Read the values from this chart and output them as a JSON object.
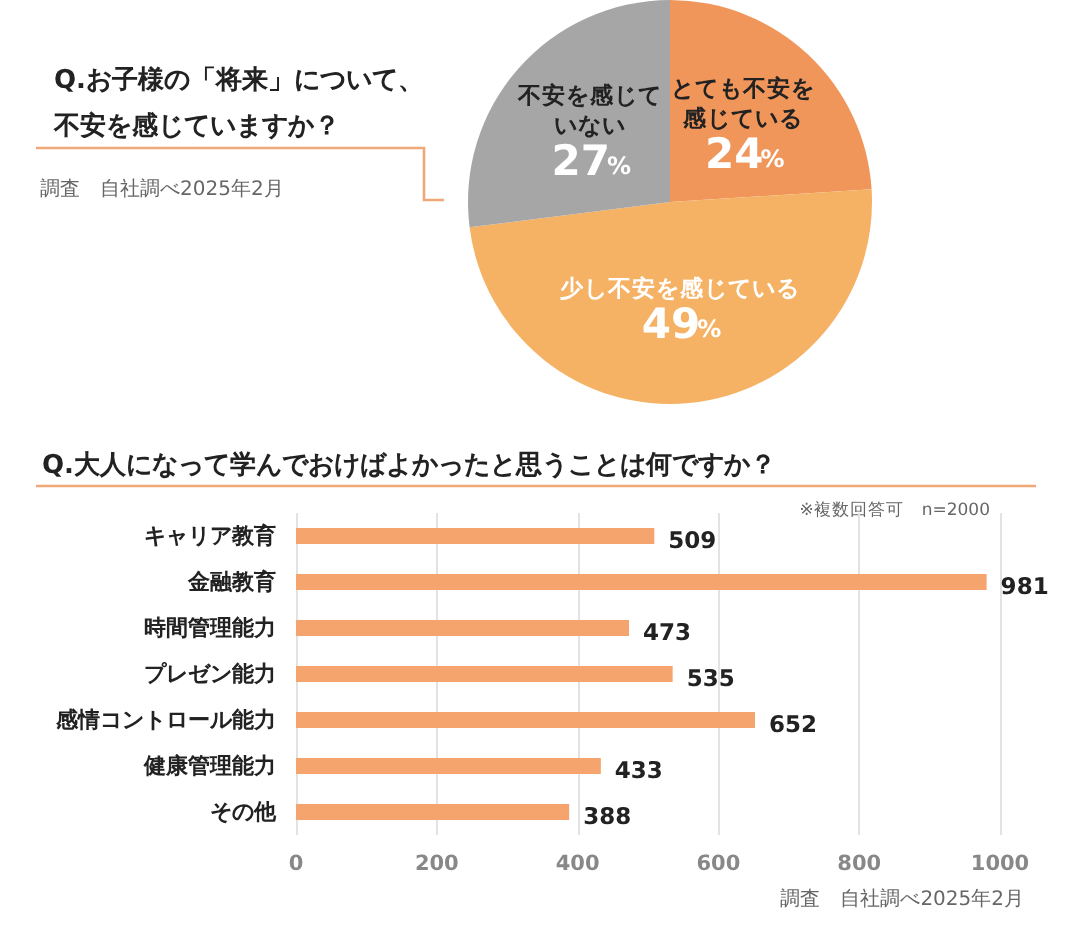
{
  "chart_data": [
    {
      "type": "pie",
      "title": "Q.お子様の「将来」について、不安を感じていますか？",
      "categories": [
        "とても不安を感じている",
        "少し不安を感じている",
        "不安を感じていない"
      ],
      "values": [
        24,
        49,
        27
      ],
      "colors": [
        "#f0965a",
        "#f5b265",
        "#a6a6a6"
      ],
      "value_labels": [
        "24%",
        "49%",
        "27%"
      ],
      "annotations": [
        "調査　自社調べ2025年2月"
      ]
    },
    {
      "type": "bar",
      "orientation": "horizontal",
      "title": "Q.大人になって学んでおけばよかったと思うことは何ですか？",
      "categories": [
        "キャリア教育",
        "金融教育",
        "時間管理能力",
        "プレゼン能力",
        "感情コントロール能力",
        "健康管理能力",
        "その他"
      ],
      "values": [
        509,
        981,
        473,
        535,
        652,
        433,
        388
      ],
      "color": "#f4a46c",
      "xlim": [
        0,
        1000
      ],
      "xticks": [
        0,
        200,
        400,
        600,
        800,
        1000
      ],
      "grid": "x",
      "data_labels": true,
      "annotations": [
        "※複数回答可　n=2000",
        "調査　自社調べ2025年2月"
      ]
    }
  ]
}
